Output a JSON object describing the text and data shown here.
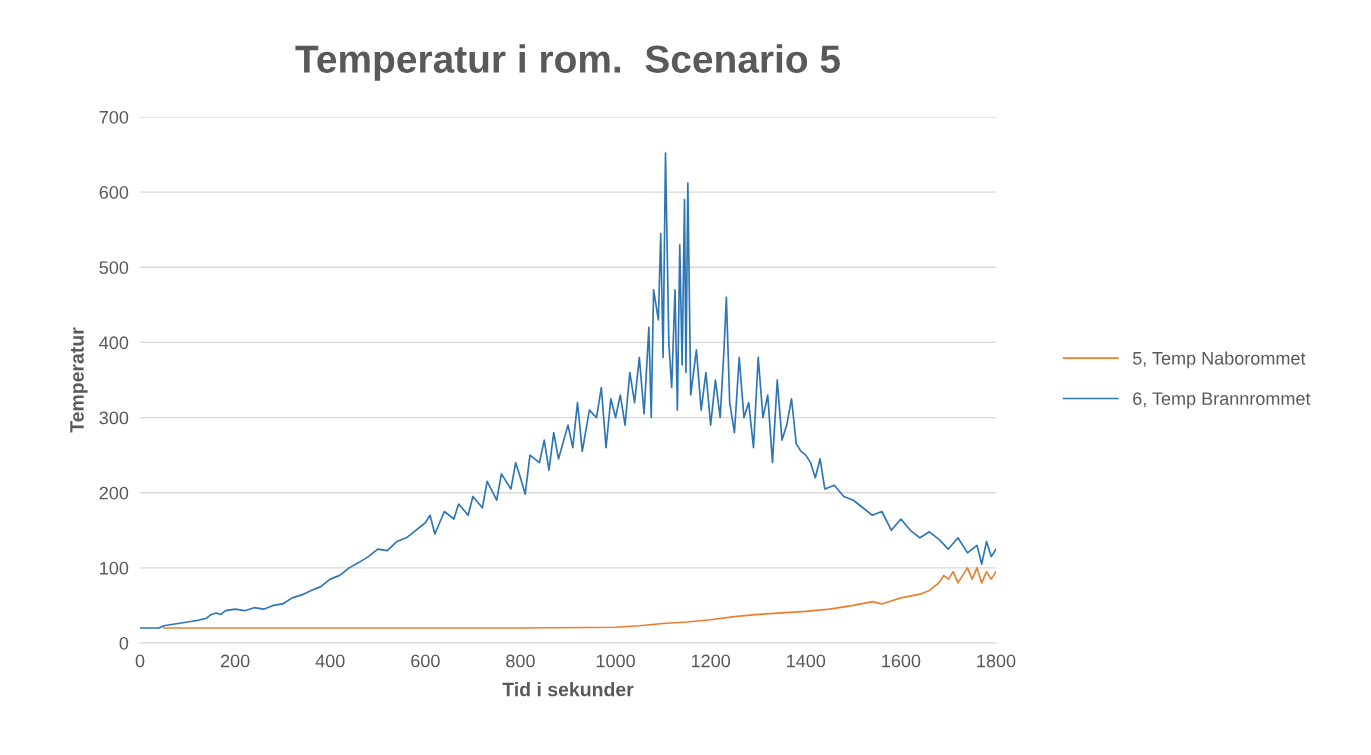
{
  "chart_data": {
    "type": "line",
    "title": "Temperatur i rom.  Scenario 5",
    "xlabel": "Tid i sekunder",
    "ylabel": "Temperatur",
    "xlim": [
      0,
      1800
    ],
    "xticks": [
      0,
      200,
      400,
      600,
      800,
      1000,
      1200,
      1400,
      1600,
      1800
    ],
    "ylim": [
      0,
      700
    ],
    "yticks": [
      0,
      100,
      200,
      300,
      400,
      500,
      600,
      700
    ],
    "grid": "y",
    "legend": "right",
    "marker": "none",
    "line_style": "solid",
    "series": [
      {
        "name": "5, Temp Naborommet",
        "color": "#ed7d31",
        "x": [
          50,
          400,
          800,
          1000,
          1050,
          1100,
          1150,
          1200,
          1250,
          1300,
          1350,
          1400,
          1450,
          1500,
          1540,
          1560,
          1600,
          1640,
          1660,
          1680,
          1690,
          1700,
          1710,
          1720,
          1740,
          1750,
          1760,
          1770,
          1780,
          1790,
          1800
        ],
        "values": [
          20,
          20,
          20,
          21,
          23,
          26,
          28,
          31,
          35,
          38,
          40,
          42,
          45,
          50,
          55,
          52,
          60,
          65,
          70,
          80,
          90,
          85,
          95,
          80,
          100,
          85,
          100,
          80,
          95,
          85,
          95
        ]
      },
      {
        "name": "6, Temp Brannrommet",
        "color": "#2e75b6",
        "x": [
          0,
          40,
          50,
          80,
          100,
          120,
          140,
          150,
          160,
          170,
          180,
          200,
          220,
          240,
          260,
          280,
          300,
          320,
          340,
          360,
          380,
          400,
          420,
          440,
          460,
          480,
          500,
          520,
          540,
          560,
          580,
          600,
          610,
          620,
          640,
          660,
          670,
          690,
          700,
          720,
          730,
          750,
          760,
          780,
          790,
          800,
          810,
          820,
          840,
          850,
          860,
          870,
          880,
          900,
          910,
          920,
          930,
          945,
          960,
          970,
          980,
          990,
          1000,
          1010,
          1020,
          1030,
          1040,
          1050,
          1060,
          1070,
          1075,
          1080,
          1090,
          1095,
          1100,
          1105,
          1112,
          1118,
          1125,
          1130,
          1135,
          1140,
          1145,
          1148,
          1152,
          1158,
          1170,
          1180,
          1190,
          1200,
          1210,
          1220,
          1228,
          1233,
          1240,
          1250,
          1260,
          1270,
          1280,
          1290,
          1300,
          1310,
          1320,
          1330,
          1340,
          1350,
          1360,
          1370,
          1380,
          1390,
          1400,
          1410,
          1420,
          1430,
          1440,
          1460,
          1480,
          1500,
          1520,
          1540,
          1560,
          1580,
          1600,
          1620,
          1640,
          1660,
          1680,
          1700,
          1720,
          1740,
          1760,
          1770,
          1780,
          1790,
          1800
        ],
        "values": [
          20,
          20,
          23,
          26,
          28,
          30,
          33,
          38,
          40,
          38,
          43,
          45,
          43,
          47,
          45,
          50,
          52,
          60,
          64,
          70,
          75,
          85,
          90,
          100,
          107,
          115,
          125,
          123,
          135,
          140,
          150,
          160,
          170,
          145,
          175,
          165,
          185,
          170,
          195,
          180,
          215,
          190,
          225,
          205,
          240,
          220,
          198,
          250,
          240,
          270,
          230,
          280,
          245,
          290,
          260,
          320,
          255,
          310,
          300,
          340,
          260,
          325,
          300,
          330,
          290,
          360,
          320,
          380,
          305,
          420,
          300,
          470,
          430,
          545,
          380,
          652,
          400,
          340,
          470,
          310,
          530,
          370,
          590,
          360,
          612,
          330,
          390,
          310,
          360,
          290,
          350,
          300,
          390,
          460,
          320,
          280,
          380,
          300,
          320,
          260,
          380,
          300,
          330,
          240,
          350,
          270,
          290,
          325,
          265,
          255,
          250,
          240,
          220,
          245,
          205,
          210,
          195,
          190,
          180,
          170,
          175,
          150,
          165,
          150,
          140,
          148,
          138,
          125,
          140,
          120,
          130,
          105,
          135,
          115,
          125
        ]
      }
    ]
  }
}
